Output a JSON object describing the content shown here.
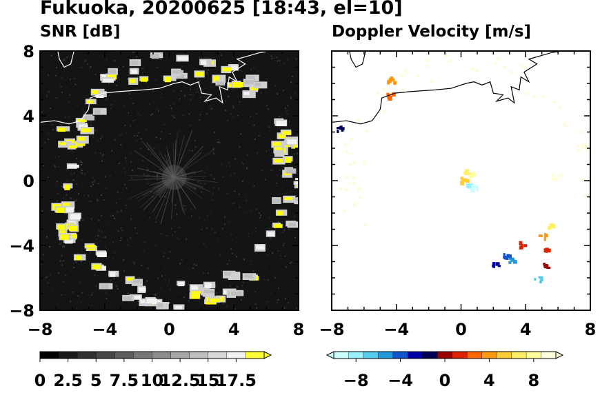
{
  "title": "Fukuoka, 20200625 [18:43, el=10]",
  "chart_data": [
    {
      "type": "heatmap",
      "title": "SNR [dB]",
      "xlim": [
        -8,
        8
      ],
      "ylim": [
        -8,
        8
      ],
      "xticks": [
        "-8",
        "-4",
        "0",
        "4",
        "8"
      ],
      "yticks": [
        "8",
        "4",
        "0",
        "-4",
        "-8"
      ],
      "colorbar": {
        "range": [
          0,
          20
        ],
        "tick_labels": [
          "0",
          "2.5",
          "5",
          "7.5",
          "10",
          "12.5",
          "15",
          "17.5"
        ],
        "colors": [
          "#000000",
          "#1a1a1a",
          "#303030",
          "#474747",
          "#5e5e5e",
          "#767676",
          "#8e8e8e",
          "#a6a6a6",
          "#bfbfbf",
          "#d9d9d9",
          "#f0f0f0",
          "#ffff33"
        ],
        "extend": "max"
      },
      "plot_background": "#141414",
      "echo_ring": {
        "center": [
          0.3,
          0
        ],
        "radius": 7.2,
        "ring_colors": [
          "#ffff00",
          "#f2f2f2",
          "#bdbdbd"
        ]
      }
    },
    {
      "type": "heatmap",
      "title": "Doppler Velocity [m/s]",
      "xlim": [
        -8,
        8
      ],
      "ylim": [
        -8,
        8
      ],
      "xticks": [
        "-8",
        "-4",
        "0",
        "4",
        "8"
      ],
      "yticks": [
        "8",
        "4",
        "0",
        "-4",
        "-8"
      ],
      "colorbar": {
        "range": [
          -10,
          10
        ],
        "tick_labels": [
          "-8",
          "-4",
          "0",
          "4",
          "8"
        ],
        "colors": [
          "#ccffff",
          "#99eeff",
          "#55ccee",
          "#2299dd",
          "#1155cc",
          "#0000aa",
          "#000055",
          "#990000",
          "#dd2200",
          "#ff6600",
          "#ff9911",
          "#ffcc33",
          "#ffee66",
          "#ffff99",
          "#ffffdd"
        ],
        "extend": "both"
      },
      "velocity_points": [
        {
          "x": 0.3,
          "y": 0.6,
          "v": 7
        },
        {
          "x": 0.6,
          "y": 0.4,
          "v": 8
        },
        {
          "x": 0.1,
          "y": 0.1,
          "v": 5
        },
        {
          "x": 0.5,
          "y": -0.3,
          "v": -8
        },
        {
          "x": 0.8,
          "y": -0.4,
          "v": -9
        },
        {
          "x": -4.4,
          "y": 6.3,
          "v": 4
        },
        {
          "x": -4.5,
          "y": 5.3,
          "v": 2
        },
        {
          "x": 5.5,
          "y": -2.8,
          "v": 6
        },
        {
          "x": 5.0,
          "y": -3.4,
          "v": 4
        },
        {
          "x": 5.3,
          "y": -4.3,
          "v": 1
        },
        {
          "x": 3.7,
          "y": -3.9,
          "v": 1
        },
        {
          "x": 5.1,
          "y": -5.2,
          "v": 0.5
        },
        {
          "x": 4.7,
          "y": -6.0,
          "v": -7
        },
        {
          "x": 3.1,
          "y": -4.9,
          "v": -5
        },
        {
          "x": 2.8,
          "y": -4.5,
          "v": -4
        },
        {
          "x": 2.1,
          "y": -5.1,
          "v": -3
        },
        {
          "x": -7.5,
          "y": 3.3,
          "v": -2
        },
        {
          "x": 5.8,
          "y": 0.3,
          "v": 9
        },
        {
          "x": 7.6,
          "y": 2.2,
          "v": 9
        }
      ]
    }
  ],
  "coastline_km": [
    [
      -8,
      3.6
    ],
    [
      -7.1,
      3.7
    ],
    [
      -6.2,
      3.5
    ],
    [
      -5.5,
      3.7
    ],
    [
      -5,
      4.4
    ],
    [
      -4.9,
      5.1
    ],
    [
      -4.1,
      5.4
    ],
    [
      -3.1,
      5.5
    ],
    [
      -1.6,
      5.6
    ],
    [
      -0.6,
      5.7
    ],
    [
      0.3,
      6.0
    ],
    [
      0.8,
      6.1
    ],
    [
      1.3,
      5.9
    ],
    [
      1.8,
      6.1
    ],
    [
      2.0,
      5.4
    ],
    [
      2.6,
      5.3
    ],
    [
      2.2,
      4.9
    ],
    [
      2.9,
      5.1
    ],
    [
      3.3,
      4.8
    ],
    [
      3.1,
      5.8
    ],
    [
      3.6,
      5.6
    ],
    [
      3.7,
      6.4
    ],
    [
      4.2,
      6.1
    ],
    [
      3.9,
      6.7
    ],
    [
      4.7,
      7.2
    ],
    [
      4.2,
      7.5
    ],
    [
      4.9,
      7.7
    ],
    [
      5.6,
      7.9
    ],
    [
      6.2,
      8.0
    ]
  ],
  "coastline_top_km": [
    [
      -5.9,
      8
    ],
    [
      -6.1,
      7.2
    ],
    [
      -6.5,
      7.0
    ],
    [
      -6.8,
      7.5
    ],
    [
      -6.9,
      8
    ]
  ]
}
